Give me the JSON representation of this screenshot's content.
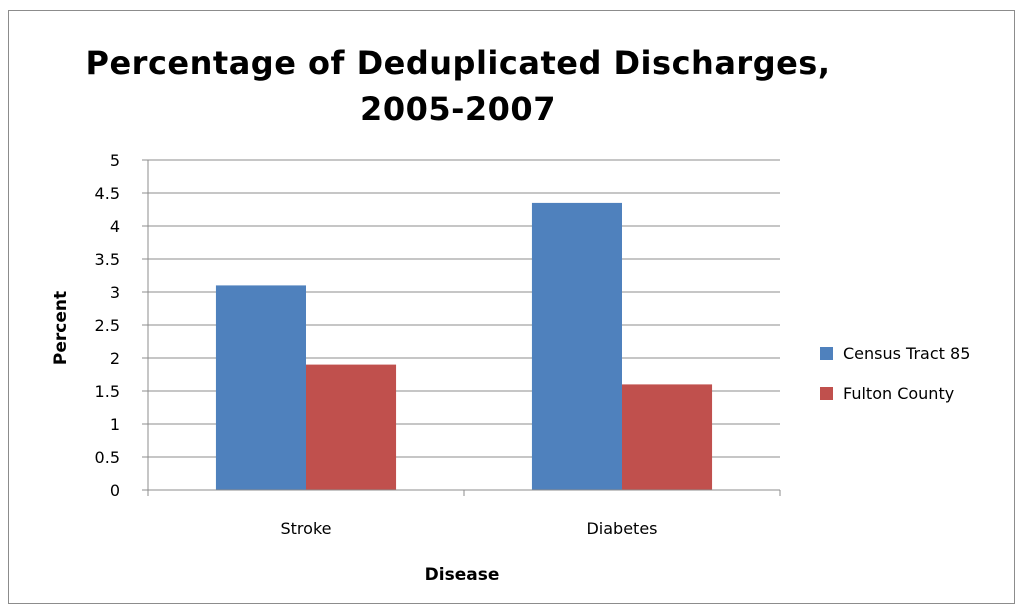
{
  "chart_data": {
    "type": "bar",
    "title": "Percentage of Deduplicated Discharges, 2005-2007",
    "title_lines": [
      "Percentage of Deduplicated Discharges,",
      "2005-2007"
    ],
    "xlabel": "Disease",
    "ylabel": "Percent",
    "categories": [
      "Stroke",
      "Diabetes"
    ],
    "series": [
      {
        "name": "Census Tract 85",
        "values": [
          3.1,
          4.35
        ],
        "color": "#4f81bd"
      },
      {
        "name": "Fulton County",
        "values": [
          1.9,
          1.6
        ],
        "color": "#c0504d"
      }
    ],
    "ylim": [
      0,
      5
    ],
    "yticks": [
      "0",
      "0.5",
      "1",
      "1.5",
      "2",
      "2.5",
      "3",
      "3.5",
      "4",
      "4.5",
      "5"
    ],
    "grid": true,
    "legend_position": "right"
  }
}
